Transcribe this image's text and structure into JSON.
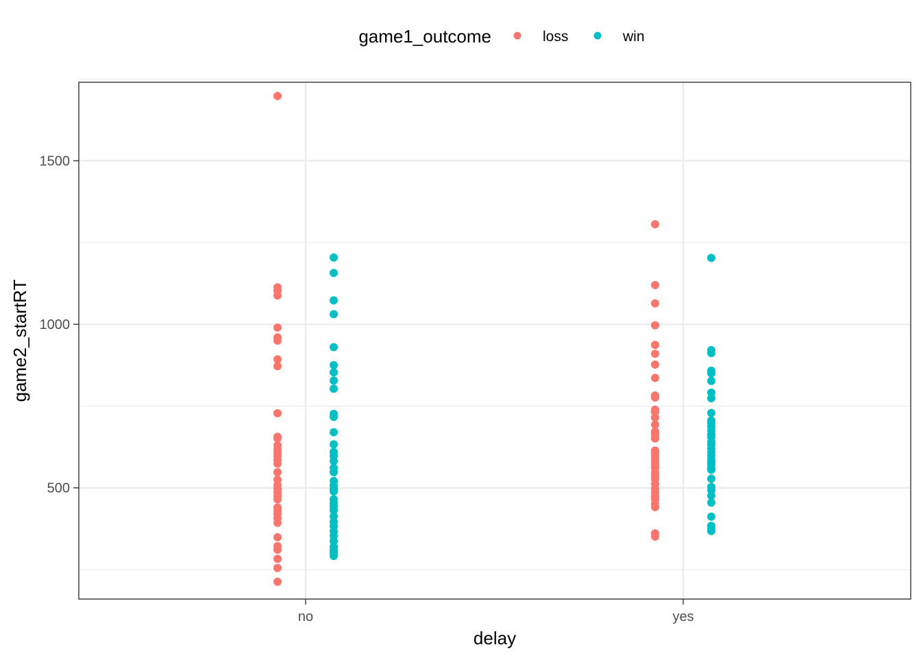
{
  "chart_data": {
    "type": "scatter",
    "x_axis": {
      "label": "delay",
      "categories": [
        "no",
        "yes"
      ]
    },
    "y_axis": {
      "label": "game2_startRT",
      "ticks": [
        500,
        1000,
        1500
      ],
      "minor_ticks": [
        250,
        750,
        1250,
        1750
      ],
      "range": [
        160,
        1740
      ]
    },
    "legend": {
      "title": "game1_outcome",
      "position": "top"
    },
    "grid": true,
    "series": [
      {
        "name": "loss",
        "color": "#F8766D",
        "groups": {
          "no": [
            1698,
            1113,
            1103,
            1088,
            990,
            960,
            950,
            893,
            872,
            728,
            656,
            651,
            630,
            618,
            607,
            598,
            586,
            574,
            548,
            525,
            508,
            497,
            486,
            475,
            465,
            440,
            430,
            420,
            407,
            393,
            349,
            322,
            311,
            283,
            255,
            213
          ],
          "yes": [
            1306,
            1120,
            1064,
            997,
            937,
            910,
            877,
            836,
            782,
            776,
            739,
            732,
            715,
            693,
            672,
            668,
            662,
            651,
            614,
            607,
            597,
            586,
            577,
            568,
            561,
            547,
            537,
            526,
            512,
            497,
            486,
            474,
            465,
            451,
            441,
            361,
            351
          ]
        }
      },
      {
        "name": "win",
        "color": "#00BFC4",
        "groups": {
          "no": [
            1204,
            1157,
            1073,
            1031,
            930,
            875,
            853,
            828,
            803,
            726,
            717,
            670,
            633,
            610,
            598,
            582,
            561,
            548,
            521,
            507,
            497,
            489,
            465,
            453,
            443,
            431,
            413,
            396,
            383,
            367,
            353,
            337,
            320,
            309,
            300,
            292
          ],
          "yes": [
            1203,
            921,
            912,
            858,
            850,
            827,
            791,
            774,
            729,
            706,
            697,
            687,
            675,
            664,
            655,
            641,
            632,
            620,
            608,
            598,
            586,
            579,
            571,
            561,
            555,
            528,
            503,
            493,
            476,
            455,
            412,
            384,
            375,
            368
          ]
        }
      }
    ]
  }
}
